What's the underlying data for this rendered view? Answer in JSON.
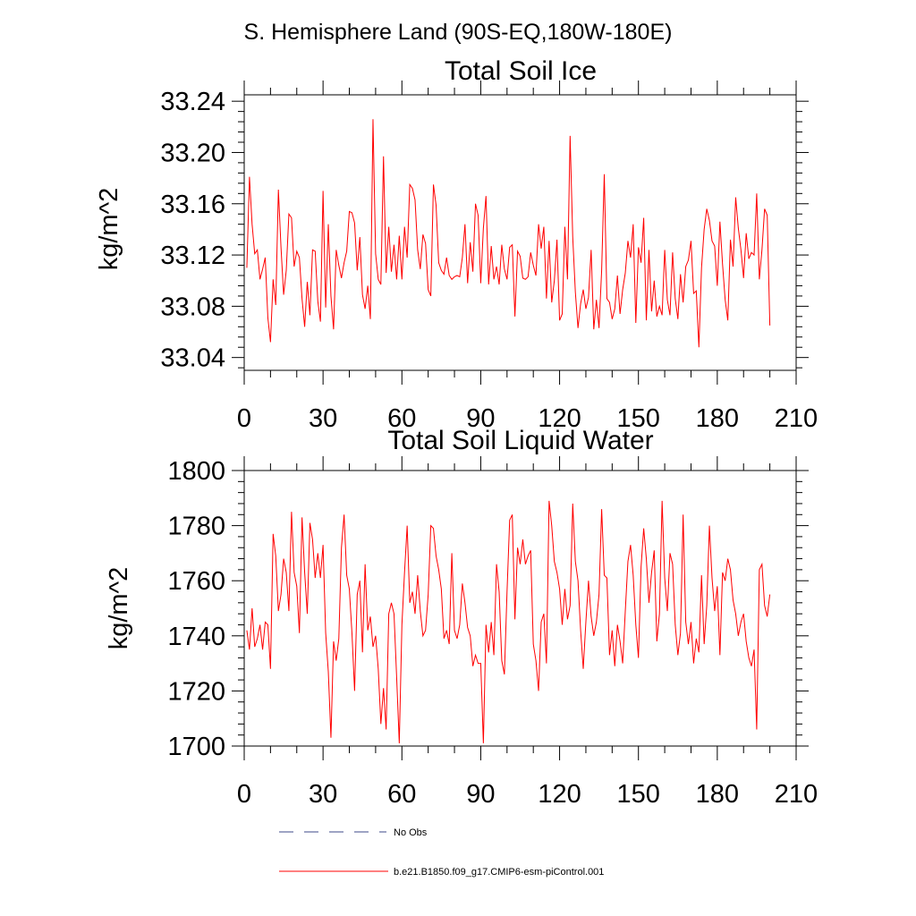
{
  "figure_title": "S. Hemisphere Land (90S-EQ,180W-180E)",
  "colors": {
    "model_line": "#ff0000",
    "obs_line": "#3d4a8a",
    "axis": "#000000"
  },
  "legend": {
    "obs_label": "No Obs",
    "model_label": "b.e21.B1850.f09_g17.CMIP6-esm-piControl.001"
  },
  "chart_data": [
    {
      "type": "line",
      "title": "Total Soil Ice",
      "xlabel": "",
      "ylabel": "kg/m^2",
      "xlim": [
        0,
        210
      ],
      "ylim": [
        33.03,
        33.245
      ],
      "xticks": [
        0,
        30,
        60,
        90,
        120,
        150,
        180,
        210
      ],
      "xtick_labels": [
        "0",
        "30",
        "60",
        "90",
        "120",
        "150",
        "180",
        "210"
      ],
      "yticks": [
        33.04,
        33.08,
        33.12,
        33.16,
        33.2,
        33.24
      ],
      "ytick_labels": [
        "33.04",
        "33.08",
        "33.12",
        "33.16",
        "33.20",
        "33.24"
      ],
      "grid": false,
      "series": [
        {
          "name": "b.e21.B1850.f09_g17.CMIP6-esm-piControl.001",
          "x_start": 1,
          "x_step": 1,
          "values": [
            33.11,
            33.181,
            33.144,
            33.121,
            33.124,
            33.101,
            33.109,
            33.118,
            33.071,
            33.052,
            33.101,
            33.081,
            33.171,
            33.126,
            33.089,
            33.108,
            33.152,
            33.149,
            33.111,
            33.123,
            33.118,
            33.086,
            33.064,
            33.099,
            33.073,
            33.124,
            33.123,
            33.084,
            33.068,
            33.17,
            33.079,
            33.144,
            33.088,
            33.062,
            33.124,
            33.112,
            33.102,
            33.114,
            33.123,
            33.154,
            33.153,
            33.145,
            33.108,
            33.134,
            33.089,
            33.078,
            33.096,
            33.07,
            33.226,
            33.121,
            33.101,
            33.097,
            33.197,
            33.106,
            33.142,
            33.107,
            33.128,
            33.101,
            33.135,
            33.101,
            33.142,
            33.118,
            33.175,
            33.172,
            33.163,
            33.124,
            33.109,
            33.136,
            33.129,
            33.093,
            33.088,
            33.175,
            33.159,
            33.114,
            33.108,
            33.105,
            33.118,
            33.104,
            33.101,
            33.103,
            33.104,
            33.103,
            33.118,
            33.144,
            33.098,
            33.13,
            33.107,
            33.16,
            33.151,
            33.098,
            33.141,
            33.166,
            33.097,
            33.127,
            33.101,
            33.111,
            33.097,
            33.128,
            33.109,
            33.101,
            33.126,
            33.128,
            33.072,
            33.123,
            33.119,
            33.102,
            33.101,
            33.103,
            33.122,
            33.112,
            33.104,
            33.144,
            33.125,
            33.142,
            33.086,
            33.131,
            33.083,
            33.1,
            33.132,
            33.069,
            33.074,
            33.142,
            33.101,
            33.213,
            33.134,
            33.091,
            33.063,
            33.082,
            33.093,
            33.078,
            33.087,
            33.124,
            33.062,
            33.085,
            33.063,
            33.108,
            33.183,
            33.086,
            33.083,
            33.07,
            33.078,
            33.104,
            33.074,
            33.093,
            33.106,
            33.131,
            33.118,
            33.144,
            33.067,
            33.126,
            33.114,
            33.149,
            33.069,
            33.124,
            33.076,
            33.1,
            33.072,
            33.08,
            33.073,
            33.124,
            33.085,
            33.073,
            33.122,
            33.086,
            33.07,
            33.105,
            33.083,
            33.111,
            33.116,
            33.131,
            33.09,
            33.092,
            33.048,
            33.11,
            33.14,
            33.156,
            33.147,
            33.131,
            33.127,
            33.096,
            33.146,
            33.113,
            33.085,
            33.069,
            33.132,
            33.111,
            33.165,
            33.141,
            33.124,
            33.102,
            33.137,
            33.117,
            33.122,
            33.12,
            33.168,
            33.101,
            33.124,
            33.156,
            33.151,
            33.065
          ]
        }
      ]
    },
    {
      "type": "line",
      "title": "Total Soil Liquid Water",
      "xlabel": "",
      "ylabel": "kg/m^2",
      "xlim": [
        0,
        210
      ],
      "ylim": [
        1700,
        1800
      ],
      "xticks": [
        0,
        30,
        60,
        90,
        120,
        150,
        180,
        210
      ],
      "xtick_labels": [
        "0",
        "30",
        "60",
        "90",
        "120",
        "150",
        "180",
        "210"
      ],
      "yticks": [
        1700,
        1720,
        1740,
        1760,
        1780,
        1800
      ],
      "ytick_labels": [
        "1700",
        "1720",
        "1740",
        "1760",
        "1780",
        "1800"
      ],
      "grid": false,
      "series": [
        {
          "name": "b.e21.B1850.f09_g17.CMIP6-esm-piControl.001",
          "x_start": 1,
          "x_step": 1,
          "values": [
            1742,
            1735,
            1750,
            1736,
            1739,
            1744,
            1735,
            1745,
            1744,
            1728,
            1777,
            1769,
            1749,
            1755,
            1768,
            1763,
            1749,
            1785,
            1763,
            1758,
            1741,
            1783,
            1763,
            1748,
            1781,
            1775,
            1761,
            1770,
            1761,
            1773,
            1741,
            1727,
            1703,
            1738,
            1731,
            1739,
            1772,
            1784,
            1762,
            1757,
            1741,
            1720,
            1755,
            1760,
            1734,
            1766,
            1742,
            1747,
            1736,
            1740,
            1728,
            1708,
            1721,
            1706,
            1748,
            1752,
            1748,
            1725,
            1701,
            1744,
            1763,
            1780,
            1752,
            1756,
            1748,
            1762,
            1749,
            1740,
            1742,
            1755,
            1780,
            1779,
            1769,
            1764,
            1757,
            1739,
            1742,
            1737,
            1770,
            1742,
            1739,
            1744,
            1759,
            1752,
            1743,
            1740,
            1729,
            1733,
            1730,
            1730,
            1701,
            1744,
            1734,
            1745,
            1733,
            1766,
            1756,
            1731,
            1726,
            1756,
            1782,
            1784,
            1746,
            1772,
            1766,
            1775,
            1766,
            1769,
            1771,
            1737,
            1731,
            1720,
            1745,
            1748,
            1730,
            1789,
            1780,
            1767,
            1763,
            1757,
            1744,
            1757,
            1746,
            1751,
            1788,
            1767,
            1760,
            1742,
            1728,
            1745,
            1760,
            1747,
            1740,
            1745,
            1755,
            1786,
            1762,
            1761,
            1733,
            1742,
            1729,
            1744,
            1738,
            1730,
            1749,
            1767,
            1773,
            1762,
            1744,
            1732,
            1765,
            1779,
            1768,
            1752,
            1763,
            1771,
            1738,
            1748,
            1789,
            1761,
            1749,
            1770,
            1766,
            1744,
            1733,
            1741,
            1784,
            1745,
            1737,
            1745,
            1730,
            1739,
            1734,
            1762,
            1737,
            1751,
            1780,
            1761,
            1749,
            1758,
            1733,
            1763,
            1760,
            1768,
            1764,
            1753,
            1748,
            1740,
            1745,
            1748,
            1738,
            1732,
            1729,
            1735,
            1706,
            1764,
            1766,
            1751,
            1747,
            1755
          ]
        }
      ]
    }
  ]
}
